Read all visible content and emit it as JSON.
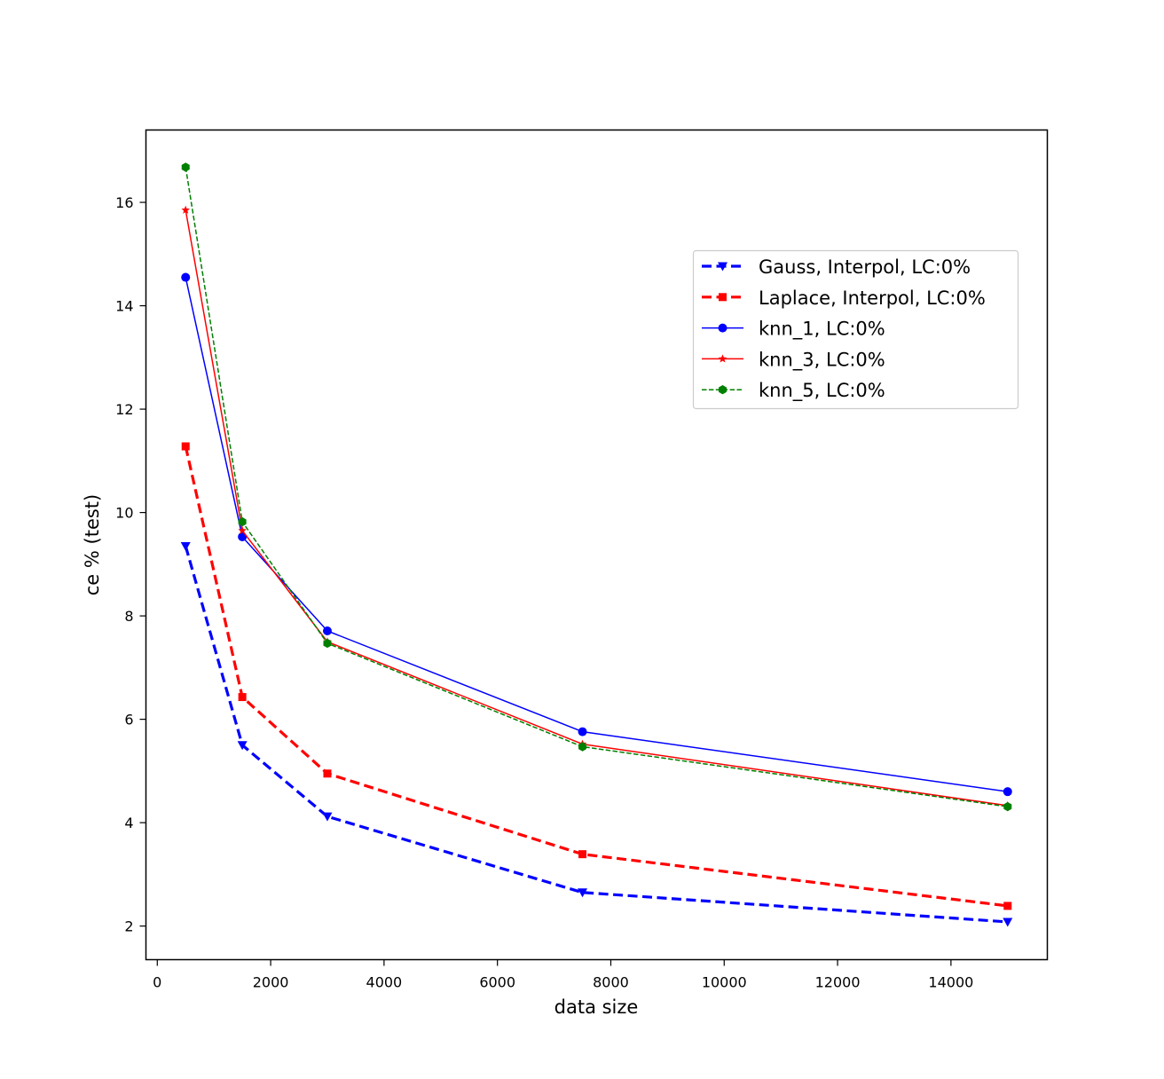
{
  "chart_data": {
    "type": "line",
    "title": "",
    "xlabel": "data size",
    "ylabel": "ce % (test)",
    "xlim": [
      -200,
      15700
    ],
    "ylim": [
      1.35,
      17.4
    ],
    "xticks": [
      0,
      2000,
      4000,
      6000,
      8000,
      10000,
      12000,
      14000
    ],
    "yticks": [
      2,
      4,
      6,
      8,
      10,
      12,
      14,
      16
    ],
    "legend_position": "upper right",
    "x": [
      500,
      1500,
      3000,
      7500,
      15000
    ],
    "series": [
      {
        "name": "Gauss, Interpol, LC:0%",
        "values": [
          9.35,
          5.5,
          4.12,
          2.65,
          2.08
        ],
        "color": "#0000ff",
        "dash": "dashed-thick",
        "marker": "triangle-down"
      },
      {
        "name": "Laplace, Interpol, LC:0%",
        "values": [
          11.28,
          6.43,
          4.95,
          3.39,
          2.39
        ],
        "color": "#ff0000",
        "dash": "dashed-thick",
        "marker": "square"
      },
      {
        "name": "knn_1, LC:0%",
        "values": [
          14.55,
          9.53,
          7.71,
          5.76,
          4.6
        ],
        "color": "#0000ff",
        "dash": "solid",
        "marker": "circle"
      },
      {
        "name": "knn_3, LC:0%",
        "values": [
          15.85,
          9.65,
          7.5,
          5.52,
          4.33
        ],
        "color": "#ff0000",
        "dash": "solid",
        "marker": "star"
      },
      {
        "name": "knn_5, LC:0%",
        "values": [
          16.68,
          9.82,
          7.47,
          5.47,
          4.31
        ],
        "color": "#008000",
        "dash": "dashed-thin",
        "marker": "hexagon"
      }
    ]
  }
}
